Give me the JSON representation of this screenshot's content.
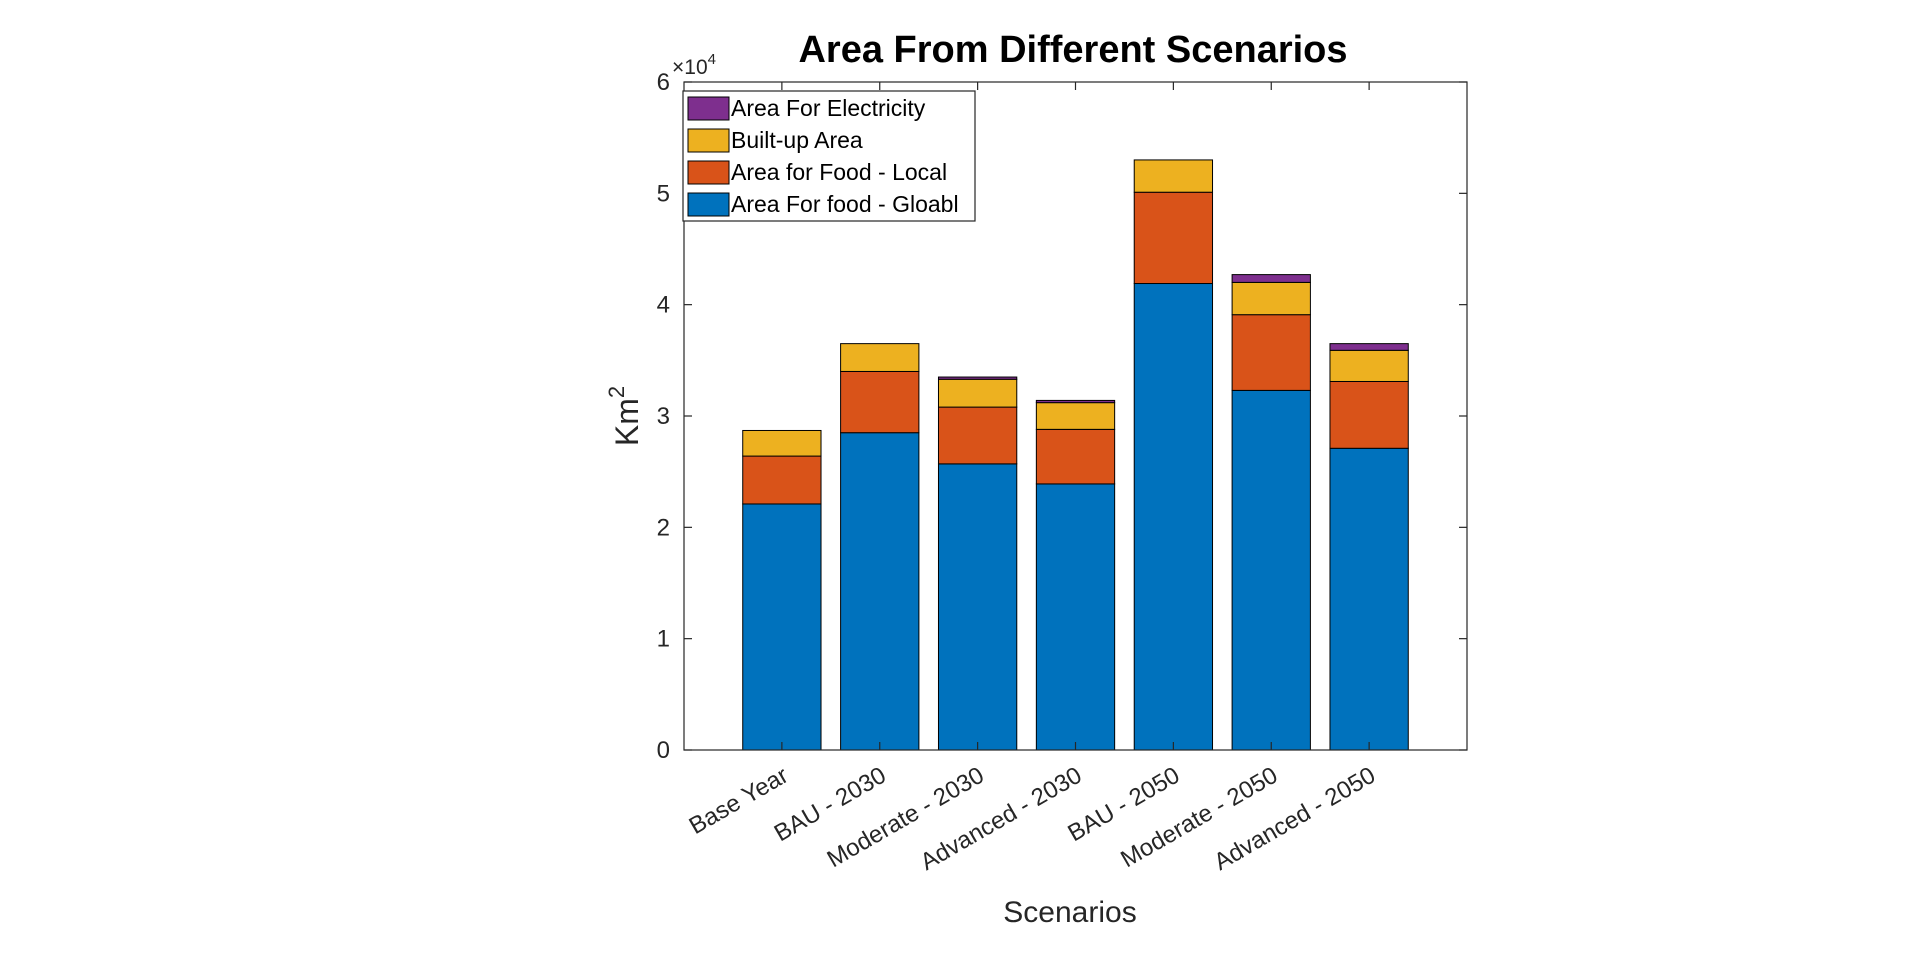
{
  "chart_data": {
    "type": "bar",
    "stacked": true,
    "title": "Area From Different Scenarios",
    "xlabel": "Scenarios",
    "ylabel": "Km",
    "ylabel_superscript": "2",
    "exponent_base": "×10",
    "exponent_power": "4",
    "ylim": [
      0,
      60000
    ],
    "yticks": [
      0,
      10000,
      20000,
      30000,
      40000,
      50000,
      60000
    ],
    "ytick_labels": [
      "0",
      "1",
      "2",
      "3",
      "4",
      "5",
      "6"
    ],
    "grid": false,
    "legend_position": "top-left",
    "categories": [
      "Base Year",
      "BAU - 2030",
      "Moderate - 2030",
      "Advanced - 2030",
      "BAU - 2050",
      "Moderate - 2050",
      "Advanced - 2050"
    ],
    "series": [
      {
        "name": "Area For food - Gloabl",
        "color": "#0072BD",
        "values": [
          22100,
          28500,
          25700,
          23900,
          41900,
          32300,
          27100
        ]
      },
      {
        "name": "Area for Food - Local",
        "color": "#D95319",
        "values": [
          4300,
          5500,
          5100,
          4900,
          8200,
          6800,
          6000
        ]
      },
      {
        "name": "Built-up Area",
        "color": "#EDB120",
        "values": [
          2300,
          2500,
          2500,
          2400,
          2900,
          2900,
          2800
        ]
      },
      {
        "name": "Area For Electricity",
        "color": "#7E2F8E",
        "values": [
          0,
          0,
          200,
          200,
          0,
          700,
          600
        ]
      }
    ],
    "legend_order": [
      3,
      2,
      1,
      0
    ]
  }
}
